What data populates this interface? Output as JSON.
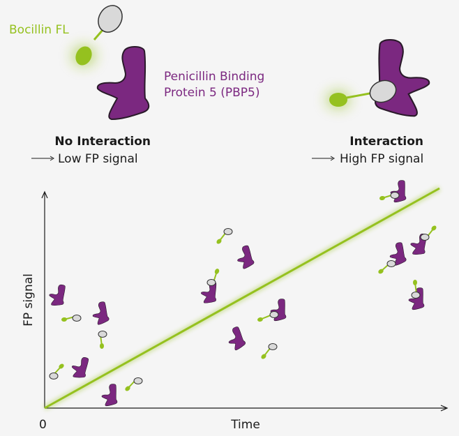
{
  "labels": {
    "ligand": "Bocillin FL",
    "protein_line1": "Penicillin Binding",
    "protein_line2": "Protein 5 (PBP5)",
    "left_state_title": "No Interaction",
    "left_state_result": "Low FP signal",
    "right_state_title": "Interaction",
    "right_state_result": "High FP signal"
  },
  "axes": {
    "origin": "0",
    "x_label": "Time",
    "y_label": "FP signal"
  },
  "colors": {
    "ligand": "#95c11f",
    "protein": "#7b2880",
    "tag": "#d9d9d9",
    "text": "#1a1a1a",
    "background": "#f5f5f5"
  }
}
